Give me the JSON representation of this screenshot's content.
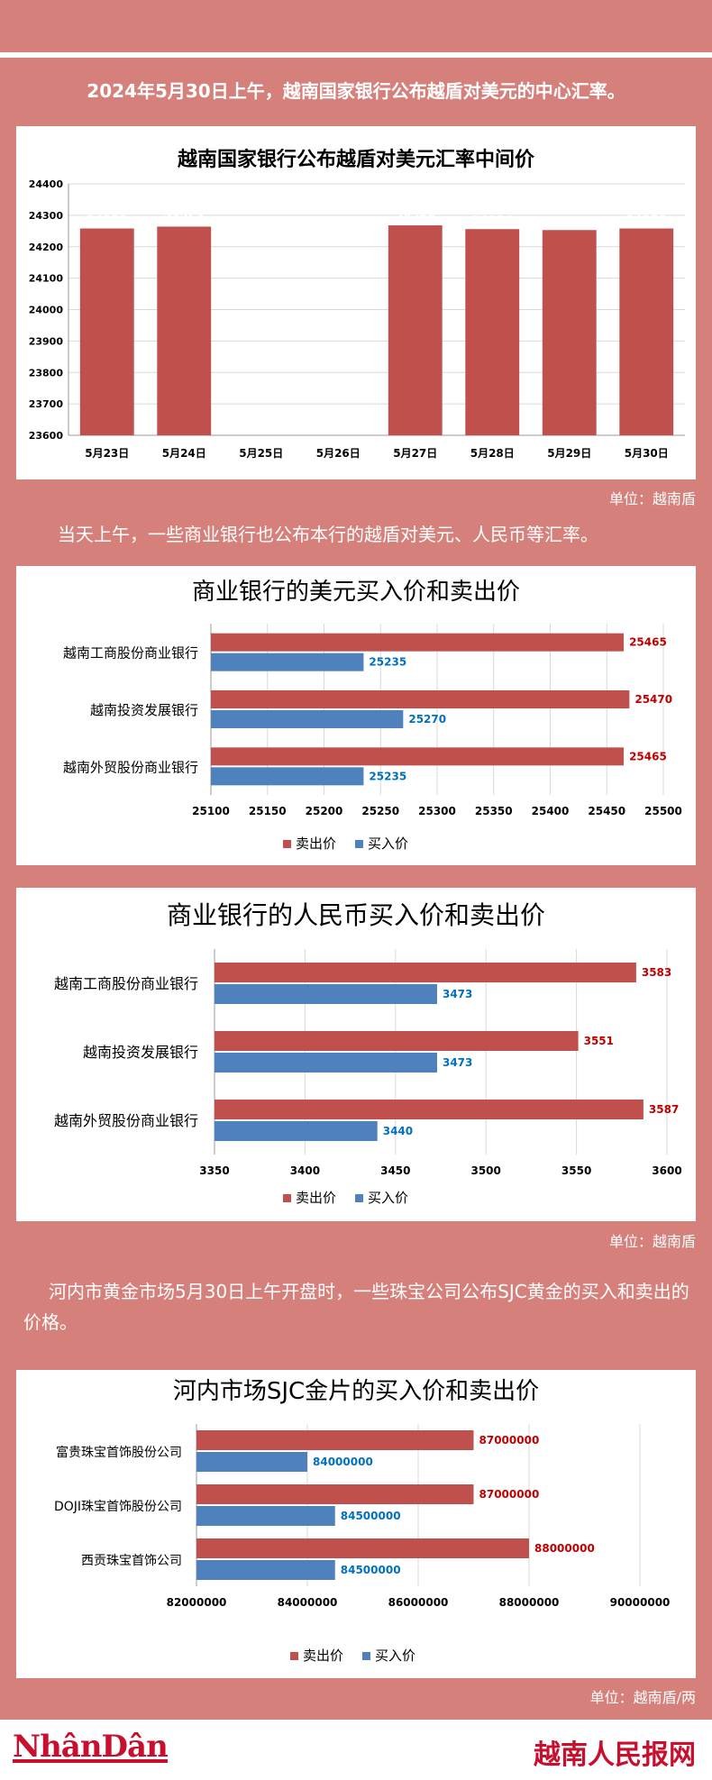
{
  "intro_1": "2024年5月30日上午，越南国家银行公布越盾对美元的中心汇率。",
  "intro_2": "当天上午，一些商业银行也公布本行的越盾对美元、人民币等汇率。",
  "intro_3": "河内市黄金市场5月30日上午开盘时，一些珠宝公司公布SJC黄金的买入和卖出的价格。",
  "unit_1": "单位：越南盾",
  "unit_2": "单位：越南盾",
  "unit_3": "单位：越南盾/两",
  "footer": {
    "left_logo": "NhânDân",
    "right_logo": "越南人民报网"
  },
  "colors": {
    "sell": "#c0504d",
    "buy": "#4f81bd",
    "background": "#d6807c"
  },
  "chart_data": [
    {
      "type": "bar",
      "title": "越南国家银行公布越盾对美元汇率中间价",
      "categories": [
        "5月23日",
        "5月24日",
        "5月25日",
        "5月26日",
        "5月27日",
        "5月28日",
        "5月29日",
        "5月30日"
      ],
      "values": [
        24258,
        24264,
        null,
        null,
        24268,
        24256,
        24253,
        24258
      ],
      "ylim": [
        23600,
        24400
      ],
      "yticks": [
        23600,
        23700,
        23800,
        23900,
        24000,
        24100,
        24200,
        24300,
        24400
      ],
      "xlabel": "",
      "ylabel": ""
    },
    {
      "type": "bar",
      "orientation": "horizontal",
      "title": "商业银行的美元买入价和卖出价",
      "categories": [
        "越南工商股份商业银行",
        "越南投资发展银行",
        "越南外贸股份商业银行"
      ],
      "series": [
        {
          "name": "卖出价",
          "values": [
            25465,
            25470,
            25465
          ]
        },
        {
          "name": "买入价",
          "values": [
            25235,
            25270,
            25235
          ]
        }
      ],
      "xlim": [
        25100,
        25500
      ],
      "xticks": [
        25100,
        25150,
        25200,
        25250,
        25300,
        25350,
        25400,
        25450,
        25500
      ],
      "legend": "bottom"
    },
    {
      "type": "bar",
      "orientation": "horizontal",
      "title": "商业银行的人民币买入价和卖出价",
      "categories": [
        "越南工商股份商业银行",
        "越南投资发展银行",
        "越南外贸股份商业银行"
      ],
      "series": [
        {
          "name": "卖出价",
          "values": [
            3583,
            3551,
            3587
          ]
        },
        {
          "name": "买入价",
          "values": [
            3473,
            3473,
            3440
          ]
        }
      ],
      "xlim": [
        3350,
        3600
      ],
      "xticks": [
        3350,
        3400,
        3450,
        3500,
        3550,
        3600
      ],
      "legend": "bottom"
    },
    {
      "type": "bar",
      "orientation": "horizontal",
      "title": "河内市场SJC金片的买入价和卖出价",
      "categories": [
        "富贵珠宝首饰股份公司",
        "DOJI珠宝首饰股份公司",
        "西贡珠宝首饰公司"
      ],
      "series": [
        {
          "name": "卖出价",
          "values": [
            87000000,
            87000000,
            88000000
          ]
        },
        {
          "name": "买入价",
          "values": [
            84000000,
            84500000,
            84500000
          ]
        }
      ],
      "xlim": [
        82000000,
        90000000
      ],
      "xticks": [
        82000000,
        84000000,
        86000000,
        88000000,
        90000000
      ],
      "legend": "bottom"
    }
  ]
}
